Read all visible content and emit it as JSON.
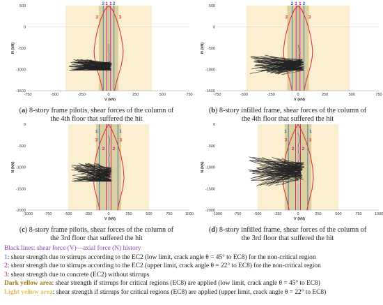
{
  "chart_data": [
    {
      "type": "line",
      "panel_id": "a",
      "caption_lines": [
        "8-story frame pilotis, shear forces of the column of",
        "the 4th floor that suffered the hit"
      ],
      "xlabel": "V (kN)",
      "ylabel": "N (kN)",
      "xlim": [
        -750,
        750
      ],
      "ylim": [
        -1500,
        500
      ],
      "xticks": [
        "-750",
        "-500",
        "-250",
        "0",
        "250",
        "500",
        "750"
      ],
      "yticks": [
        "500",
        "0",
        "-500",
        "-1000",
        "-1500"
      ],
      "light_band": [
        -400,
        400
      ],
      "dark_band": [
        -90,
        90
      ],
      "vlines": [
        {
          "label": "2",
          "x": -50,
          "color": "#2f6db5"
        },
        {
          "label": "1",
          "x": -18,
          "color": "#c01890"
        },
        {
          "label": "1",
          "x": 18,
          "color": "#c01890"
        },
        {
          "label": "2",
          "x": 50,
          "color": "#2f6db5"
        }
      ],
      "red_label": "3",
      "curve_points": [
        [
          0,
          500
        ],
        [
          35,
          400
        ],
        [
          70,
          200
        ],
        [
          95,
          0
        ],
        [
          115,
          -200
        ],
        [
          128,
          -400
        ],
        [
          135,
          -550
        ],
        [
          132,
          -700
        ],
        [
          118,
          -900
        ],
        [
          95,
          -1100
        ],
        [
          72,
          -1300
        ],
        [
          55,
          -1500
        ]
      ],
      "history_extent": {
        "x": [
          -370,
          30
        ],
        "y": [
          -1020,
          -400
        ]
      },
      "hysteresis_center": -930
    },
    {
      "type": "line",
      "panel_id": "b",
      "caption_lines": [
        "8-story infilled frame, shear forces of the column of",
        "the 4th floor that suffered the hit"
      ],
      "xlabel": "V (kN)",
      "ylabel": "N (kN)",
      "xlim": [
        -750,
        750
      ],
      "ylim": [
        -1500,
        500
      ],
      "xticks": [
        "-750",
        "-500",
        "-250",
        "0",
        "250",
        "500",
        "750"
      ],
      "yticks": [
        "500",
        "0",
        "-500",
        "-1000",
        "-1500"
      ],
      "light_band": [
        -480,
        480
      ],
      "dark_band": [
        -100,
        100
      ],
      "vlines": [
        {
          "label": "2",
          "x": -55,
          "color": "#2f6db5"
        },
        {
          "label": "1",
          "x": -18,
          "color": "#c01890"
        },
        {
          "label": "1",
          "x": 18,
          "color": "#c01890"
        },
        {
          "label": "2",
          "x": 55,
          "color": "#2f6db5"
        }
      ],
      "red_label": "3",
      "curve_points": [
        [
          0,
          500
        ],
        [
          35,
          400
        ],
        [
          70,
          200
        ],
        [
          95,
          0
        ],
        [
          115,
          -200
        ],
        [
          128,
          -400
        ],
        [
          135,
          -550
        ],
        [
          132,
          -700
        ],
        [
          118,
          -900
        ],
        [
          95,
          -1100
        ],
        [
          72,
          -1300
        ],
        [
          55,
          -1500
        ]
      ],
      "history_extent": {
        "x": [
          -450,
          60
        ],
        "y": [
          -1280,
          -420
        ]
      },
      "hysteresis_center": -900
    },
    {
      "type": "line",
      "panel_id": "c",
      "caption_lines": [
        "8-story frame pilotis, shear forces of the column of",
        "the 3rd floor that suffered the hit"
      ],
      "xlabel": "V (kN)",
      "ylabel": "N (kN)",
      "xlim": [
        -1000,
        1000
      ],
      "ylim": [
        -2000,
        0
      ],
      "xticks": [
        "-1000",
        "-750",
        "-500",
        "-250",
        "0",
        "250",
        "500",
        "750",
        "1000"
      ],
      "yticks": [
        "0",
        "-500",
        "-1000",
        "-1500",
        "-2000"
      ],
      "light_band": [
        -500,
        500
      ],
      "dark_band": [
        -155,
        155
      ],
      "vlines": [
        {
          "label": "1",
          "x": -115,
          "color": "#2f6db5"
        },
        {
          "label": "2",
          "x": -30,
          "color": "#c01890"
        },
        {
          "label": "2",
          "x": 30,
          "color": "#c01890"
        },
        {
          "label": "1",
          "x": 115,
          "color": "#2f6db5"
        }
      ],
      "red_label": "3",
      "curve_points": [
        [
          0,
          0
        ],
        [
          45,
          -150
        ],
        [
          100,
          -400
        ],
        [
          150,
          -700
        ],
        [
          180,
          -1000
        ],
        [
          190,
          -1250
        ],
        [
          175,
          -1500
        ],
        [
          140,
          -1750
        ],
        [
          110,
          -2000
        ]
      ],
      "history_extent": {
        "x": [
          -470,
          40
        ],
        "y": [
          -1330,
          -250
        ]
      },
      "hysteresis_center": -1200
    },
    {
      "type": "line",
      "panel_id": "d",
      "caption_lines": [
        "8-story infilled frame, shear forces of the column of",
        "the 3rd floor that suffered the hit"
      ],
      "xlabel": "V (kN)",
      "ylabel": "N (kN)",
      "xlim": [
        -1000,
        1000
      ],
      "ylim": [
        -2000,
        0
      ],
      "xticks": [
        "-1000",
        "-750",
        "-500",
        "-250",
        "0",
        "250",
        "500",
        "750",
        "1000"
      ],
      "yticks": [
        "0",
        "-500",
        "-1000",
        "-1500",
        "-2000"
      ],
      "light_band": [
        -500,
        500
      ],
      "dark_band": [
        -165,
        165
      ],
      "vlines": [
        {
          "label": "1",
          "x": -120,
          "color": "#2f6db5"
        },
        {
          "label": "2",
          "x": -30,
          "color": "#c01890"
        },
        {
          "label": "2",
          "x": 30,
          "color": "#c01890"
        },
        {
          "label": "1",
          "x": 120,
          "color": "#2f6db5"
        }
      ],
      "red_label": "3",
      "curve_points": [
        [
          0,
          0
        ],
        [
          45,
          -150
        ],
        [
          100,
          -400
        ],
        [
          150,
          -700
        ],
        [
          180,
          -1000
        ],
        [
          190,
          -1250
        ],
        [
          175,
          -1500
        ],
        [
          140,
          -1750
        ],
        [
          110,
          -2000
        ]
      ],
      "history_extent": {
        "x": [
          -620,
          80
        ],
        "y": [
          -1450,
          -200
        ]
      },
      "hysteresis_center": -1100
    }
  ],
  "legend": {
    "black_lines": "Black lines: shear force (V)—axial force (N) history",
    "line1_key": "1",
    "line1": ": shear strength due to stirrups according to the EC2 (low limit, crack angle θ = 45° to EC8) for the non-critical region",
    "line2_key": "2",
    "line2": ": shear strength due to stirrups according to the EC2 (upper limit, crack angle θ = 22° to EC8) for the non-critical region",
    "line3_key": "3",
    "line3": ": shear strength due to concrete (EC2) without stirrups",
    "dark_key": "Dark yellow area",
    "dark": ": shear strength if stirrups for critical regions (EC8) are applied (low limit, crack angle θ = 45° to EC8)",
    "light_key": "Light yellow area",
    "light": ": shear strength if stirrups for critical regions (EC8) are applied (upper limit, crack angle θ = 22° to EC8)"
  },
  "colors": {
    "light_band": "#fbefd0",
    "dark_band": "#dccf9e",
    "curve": "#e03434",
    "history": "#222222",
    "axis": "#999999"
  }
}
